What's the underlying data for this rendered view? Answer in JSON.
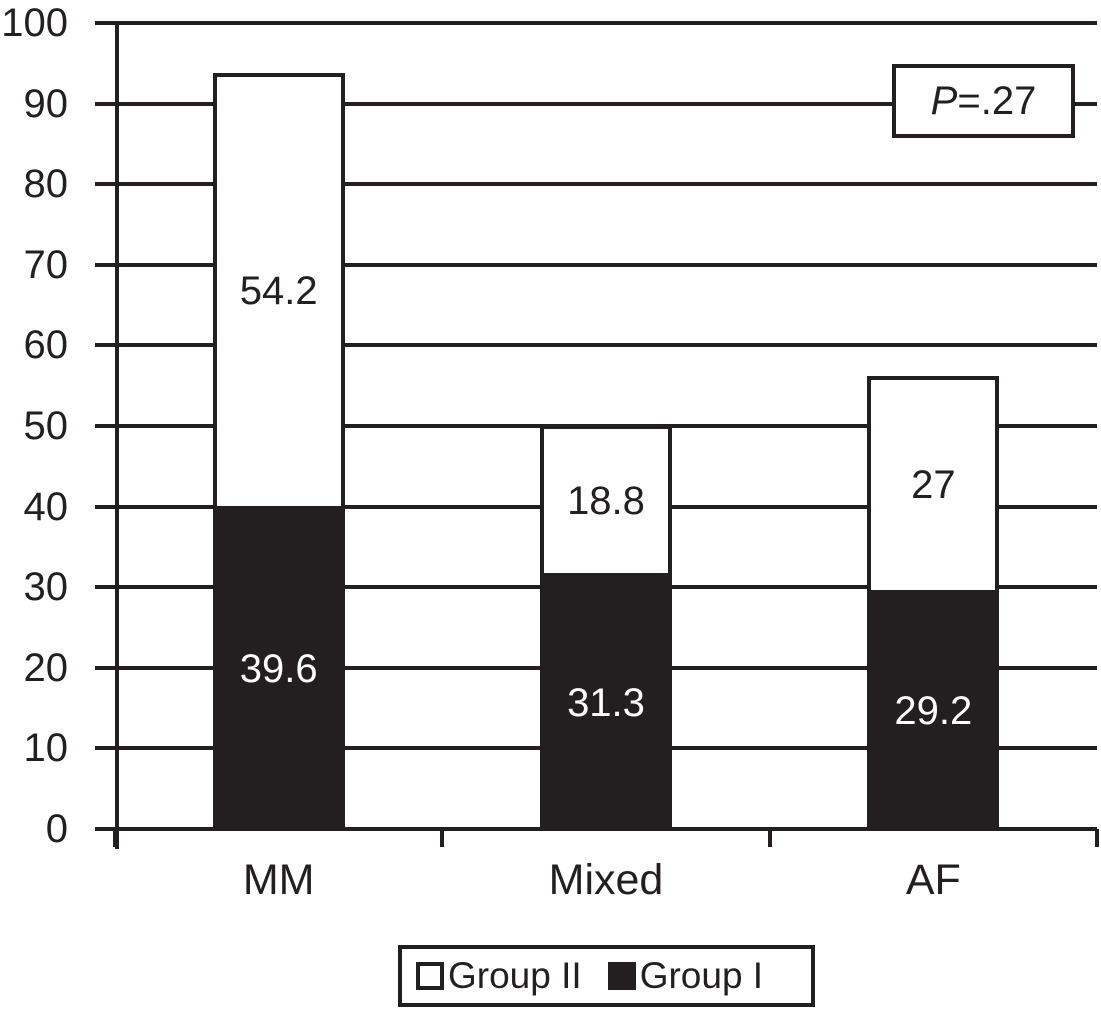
{
  "chart_data": {
    "type": "bar",
    "stacked": true,
    "title": "",
    "xlabel": "",
    "ylabel": "",
    "categories": [
      "MM",
      "Mixed",
      "AF"
    ],
    "series": [
      {
        "name": "Group I",
        "fill": "#231f20",
        "label_color": "#ffffff",
        "values": [
          39.6,
          31.3,
          29.2
        ],
        "labels": [
          "39.6",
          "31.3",
          "29.2"
        ]
      },
      {
        "name": "Group II",
        "fill": "#ffffff",
        "label_color": "#231f20",
        "values": [
          54.2,
          18.8,
          27
        ],
        "labels": [
          "54.2",
          "18.8",
          "27"
        ]
      }
    ],
    "ylim": [
      0,
      100
    ],
    "yticks": [
      0,
      10,
      20,
      30,
      40,
      50,
      60,
      70,
      80,
      90,
      100
    ],
    "grid": true,
    "line_color": "#231f20",
    "annotation": {
      "italic_part": "P",
      "rest": "=.27"
    },
    "legend": {
      "position": "bottom",
      "items": [
        {
          "label": "Group II",
          "swatch": "#ffffff"
        },
        {
          "label": "Group I",
          "swatch": "#231f20"
        }
      ]
    }
  }
}
